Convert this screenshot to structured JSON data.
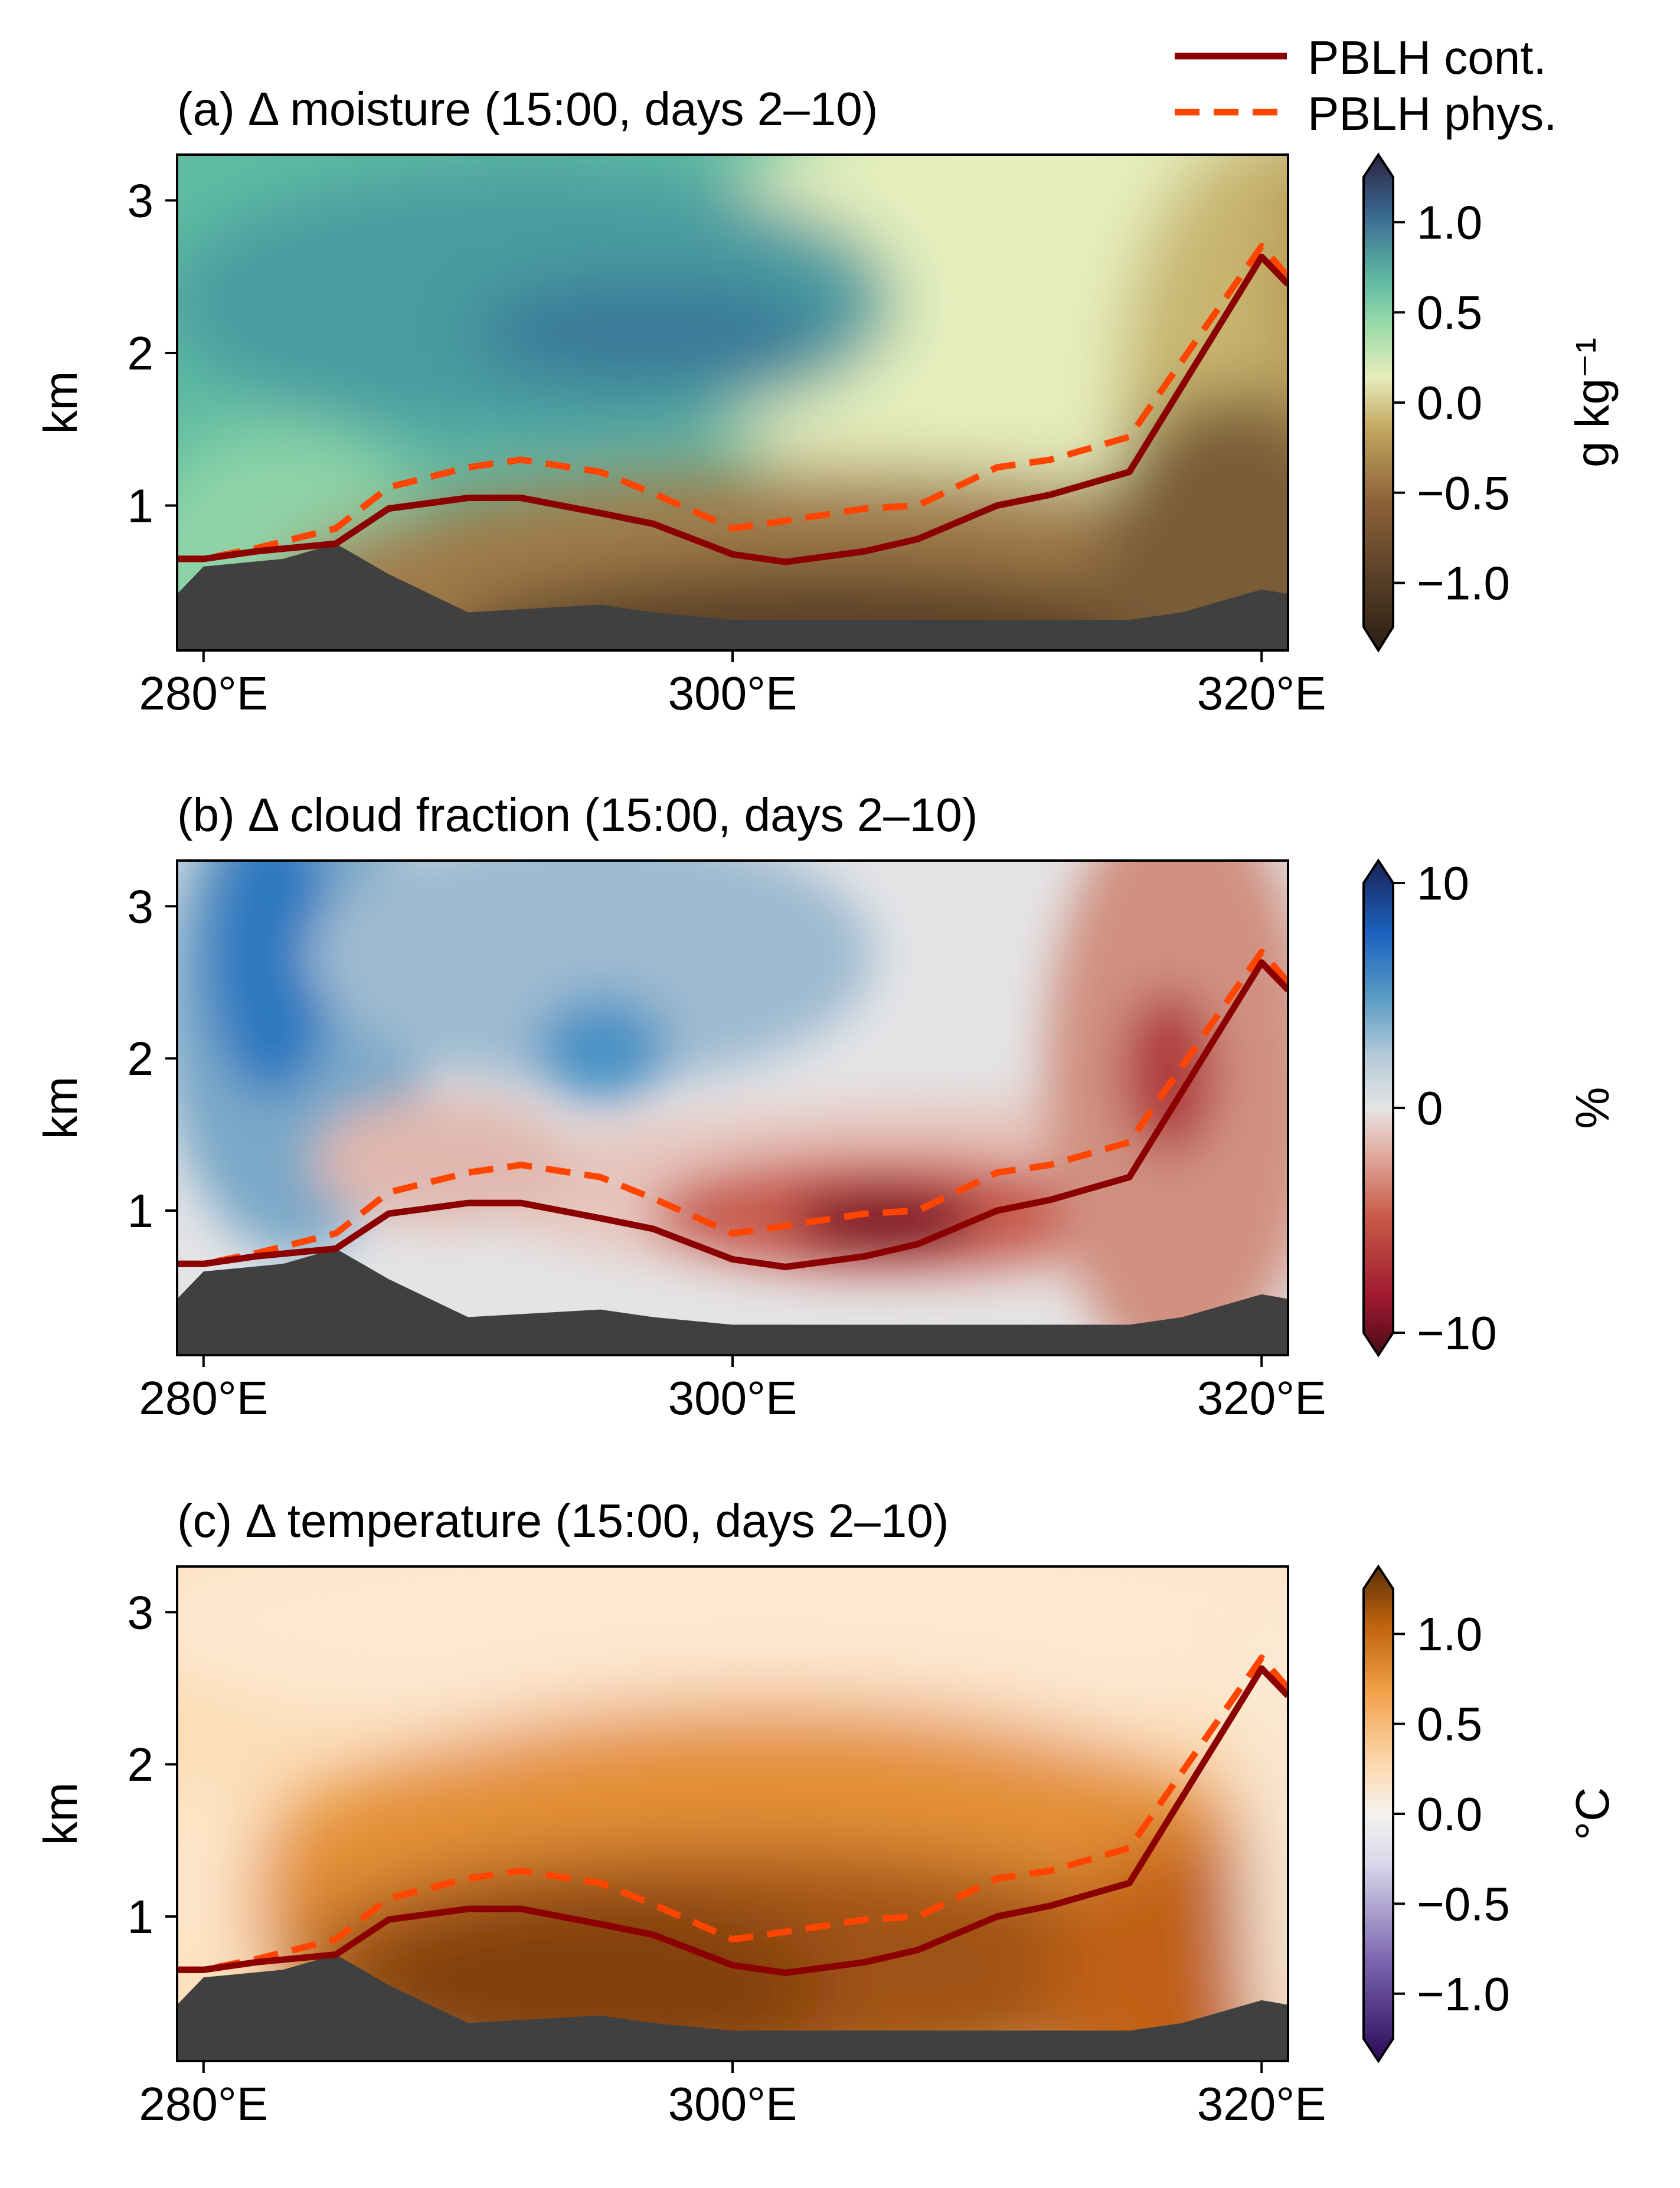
{
  "legend": {
    "placement": "top-right",
    "entries": [
      {
        "label": "PBLH cont.",
        "color": "#8b0000",
        "style": "solid"
      },
      {
        "label": "PBLH phys.",
        "color": "#ff4500",
        "style": "dashed"
      }
    ]
  },
  "chart_data": [
    {
      "type": "heatmap",
      "title": "(a) Δ moisture (15:00, days 2–10)",
      "ylabel": "km",
      "xlim": [
        279,
        321
      ],
      "ylim": [
        0.05,
        3.3
      ],
      "xticks": [
        280,
        300,
        320
      ],
      "xtick_labels": [
        "280°E",
        "300°E",
        "320°E"
      ],
      "yticks": [
        1,
        2,
        3
      ],
      "ytick_labels": [
        "1",
        "2",
        "3"
      ],
      "colorbar": {
        "label": "g kg⁻¹",
        "range": [
          -1.25,
          1.25
        ],
        "ticks": [
          -1.0,
          -0.5,
          0.0,
          0.5,
          1.0
        ],
        "tick_labels": [
          "−1.0",
          "−0.5",
          "0.0",
          "0.5",
          "1.0"
        ],
        "colormap": "BrBG",
        "extend": "both"
      }
    },
    {
      "type": "heatmap",
      "title": "(b) Δ cloud fraction (15:00, days 2–10)",
      "ylabel": "km",
      "xlim": [
        279,
        321
      ],
      "ylim": [
        0.05,
        3.3
      ],
      "xticks": [
        280,
        300,
        320
      ],
      "xtick_labels": [
        "280°E",
        "300°E",
        "320°E"
      ],
      "yticks": [
        1,
        2,
        3
      ],
      "ytick_labels": [
        "1",
        "2",
        "3"
      ],
      "colorbar": {
        "label": "%",
        "range": [
          -10,
          10
        ],
        "ticks": [
          -10,
          0,
          10
        ],
        "tick_labels": [
          "−10",
          "0",
          "10"
        ],
        "colormap": "RdBu",
        "extend": "both"
      }
    },
    {
      "type": "heatmap",
      "title": "(c) Δ temperature (15:00, days 2–10)",
      "ylabel": "km",
      "xlim": [
        279,
        321
      ],
      "ylim": [
        0.05,
        3.3
      ],
      "xticks": [
        280,
        300,
        320
      ],
      "xtick_labels": [
        "280°E",
        "300°E",
        "320°E"
      ],
      "yticks": [
        1,
        2,
        3
      ],
      "ytick_labels": [
        "1",
        "2",
        "3"
      ],
      "colorbar": {
        "label": "°C",
        "range": [
          -1.25,
          1.25
        ],
        "ticks": [
          -1.0,
          -0.5,
          0.0,
          0.5,
          1.0
        ],
        "tick_labels": [
          "−1.0",
          "−0.5",
          "0.0",
          "0.5",
          "1.0"
        ],
        "colormap": "PuOr",
        "extend": "both"
      }
    }
  ],
  "pblh": {
    "x": [
      279,
      280,
      282,
      285,
      287,
      290,
      292,
      295,
      297,
      300,
      302,
      305,
      307,
      310,
      312,
      315,
      320,
      321
    ],
    "control_km": [
      0.65,
      0.65,
      0.7,
      0.75,
      0.98,
      1.05,
      1.05,
      0.95,
      0.88,
      0.68,
      0.63,
      0.7,
      0.78,
      1.0,
      1.07,
      1.22,
      2.63,
      2.45
    ],
    "physics_km": [
      0.65,
      0.65,
      0.72,
      0.85,
      1.12,
      1.25,
      1.3,
      1.22,
      1.08,
      0.85,
      0.9,
      0.98,
      1.0,
      1.25,
      1.3,
      1.45,
      2.7,
      2.5
    ]
  },
  "terrain": {
    "x": [
      279,
      280,
      283,
      285,
      287,
      290,
      292,
      295,
      297,
      300,
      302,
      305,
      307,
      310,
      312,
      315,
      317,
      320,
      321
    ],
    "height_km": [
      0.42,
      0.6,
      0.65,
      0.75,
      0.55,
      0.3,
      0.32,
      0.35,
      0.3,
      0.25,
      0.25,
      0.25,
      0.25,
      0.25,
      0.25,
      0.25,
      0.3,
      0.45,
      0.42
    ]
  }
}
